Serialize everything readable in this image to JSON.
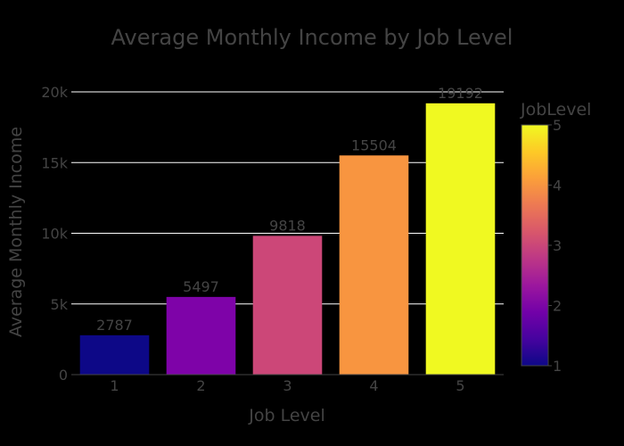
{
  "chart_data": {
    "type": "bar",
    "title": "Average Monthly Income by Job Level",
    "xlabel": "Job Level",
    "ylabel": "Average Monthly Income",
    "categories": [
      "1",
      "2",
      "3",
      "4",
      "5"
    ],
    "values": [
      2787,
      5497,
      9818,
      15504,
      19192
    ],
    "value_labels": [
      "2787",
      "5497",
      "9818",
      "15504",
      "19192"
    ],
    "ylim": [
      0,
      20000
    ],
    "y_ticks": [
      {
        "value": 0,
        "label": "0"
      },
      {
        "value": 5000,
        "label": "5k"
      },
      {
        "value": 10000,
        "label": "10k"
      },
      {
        "value": 15000,
        "label": "15k"
      },
      {
        "value": 20000,
        "label": "20k"
      }
    ],
    "grid": true,
    "colorbar": {
      "title": "JobLevel",
      "range": [
        1,
        5
      ],
      "ticks": [
        "1",
        "2",
        "3",
        "4",
        "5"
      ],
      "colorscale": [
        "#0d0887",
        "#46039f",
        "#7201a8",
        "#9c179e",
        "#bd3786",
        "#d8576b",
        "#ed7953",
        "#fb9f3a",
        "#fdca26",
        "#f0f921"
      ]
    },
    "bar_colors": [
      "#0d0887",
      "#7e03a8",
      "#cc4778",
      "#f89540",
      "#f0f921"
    ],
    "colors": {
      "background": "#000000",
      "text": "#444444",
      "grid": "#ffffff",
      "axis_line": "#444444"
    }
  }
}
